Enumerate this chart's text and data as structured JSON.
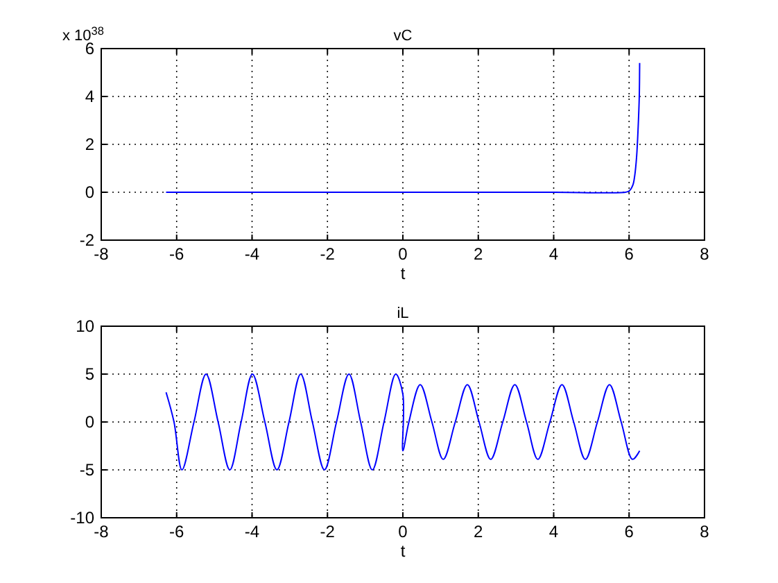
{
  "chart_data": [
    {
      "type": "line",
      "title": "vC",
      "xlabel": "t",
      "annotations": [
        "x 10$^{38}$"
      ],
      "xlim": [
        -8,
        8
      ],
      "xticks": [
        -8,
        -6,
        -4,
        -2,
        0,
        2,
        4,
        6,
        8
      ],
      "ylim": [
        -2,
        6
      ],
      "yticks": [
        -2,
        0,
        2,
        4,
        6
      ],
      "grid": true,
      "series": [
        {
          "color": "#0000ff",
          "x": [
            -6.28,
            -4,
            -2,
            0,
            2,
            4,
            5.9,
            6.0,
            6.1,
            6.15,
            6.2,
            6.24,
            6.27,
            6.28
          ],
          "values": [
            0,
            0,
            0,
            0,
            0,
            0,
            0,
            0.05,
            0.3,
            0.7,
            1.5,
            2.7,
            4,
            5.4
          ]
        }
      ]
    },
    {
      "type": "line",
      "title": "iL",
      "xlabel": "t",
      "xlim": [
        -8,
        8
      ],
      "xticks": [
        -8,
        -6,
        -4,
        -2,
        0,
        2,
        4,
        6,
        8
      ],
      "ylim": [
        -10,
        10
      ],
      "yticks": [
        -10,
        -5,
        0,
        5,
        10
      ],
      "grid": true,
      "series": [
        {
          "color": "#0000ff",
          "x": [
            -6.28,
            -6.07,
            -5.86,
            -5.54,
            -5.22,
            -4.9,
            -4.59,
            -4.29,
            -3.99,
            -3.66,
            -3.34,
            -3.02,
            -2.71,
            -2.4,
            -2.08,
            -1.76,
            -1.43,
            -1.12,
            -0.81,
            -0.5,
            -0.19,
            0,
            0,
            0.16,
            0.46,
            0.77,
            1.07,
            1.39,
            1.71,
            2.02,
            2.33,
            2.65,
            2.97,
            3.28,
            3.58,
            3.9,
            4.22,
            4.53,
            4.84,
            5.16,
            5.48,
            5.79,
            6.09,
            6.28
          ],
          "values": [
            3.1,
            0,
            -5,
            0,
            5,
            0,
            -5,
            0,
            5,
            0,
            -5,
            0,
            5,
            0,
            -5,
            0,
            5,
            0,
            -5,
            0,
            5,
            2.9,
            -3,
            0,
            3.9,
            0,
            -3.9,
            0,
            3.9,
            0,
            -3.9,
            0,
            3.9,
            0,
            -3.9,
            0,
            3.9,
            0,
            -3.9,
            0,
            3.9,
            0,
            -3.9,
            -3
          ]
        }
      ]
    }
  ]
}
